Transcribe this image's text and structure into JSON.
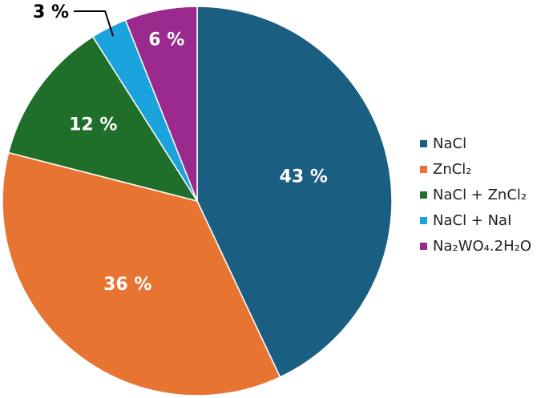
{
  "chart_data": {
    "type": "pie",
    "categories": [
      "NaCl",
      "ZnCl₂",
      "NaCl + ZnCl₂",
      "NaCl + NaI",
      "Na₂WO₄.2H₂O"
    ],
    "values": [
      43,
      36,
      12,
      3,
      6
    ],
    "value_labels": [
      "43 %",
      "36 %",
      "12 %",
      "3 %",
      "6 %"
    ],
    "colors": [
      "#1a5f82",
      "#e87432",
      "#1f6e2a",
      "#1aa3dc",
      "#9b2a8e"
    ],
    "legend": "right"
  }
}
